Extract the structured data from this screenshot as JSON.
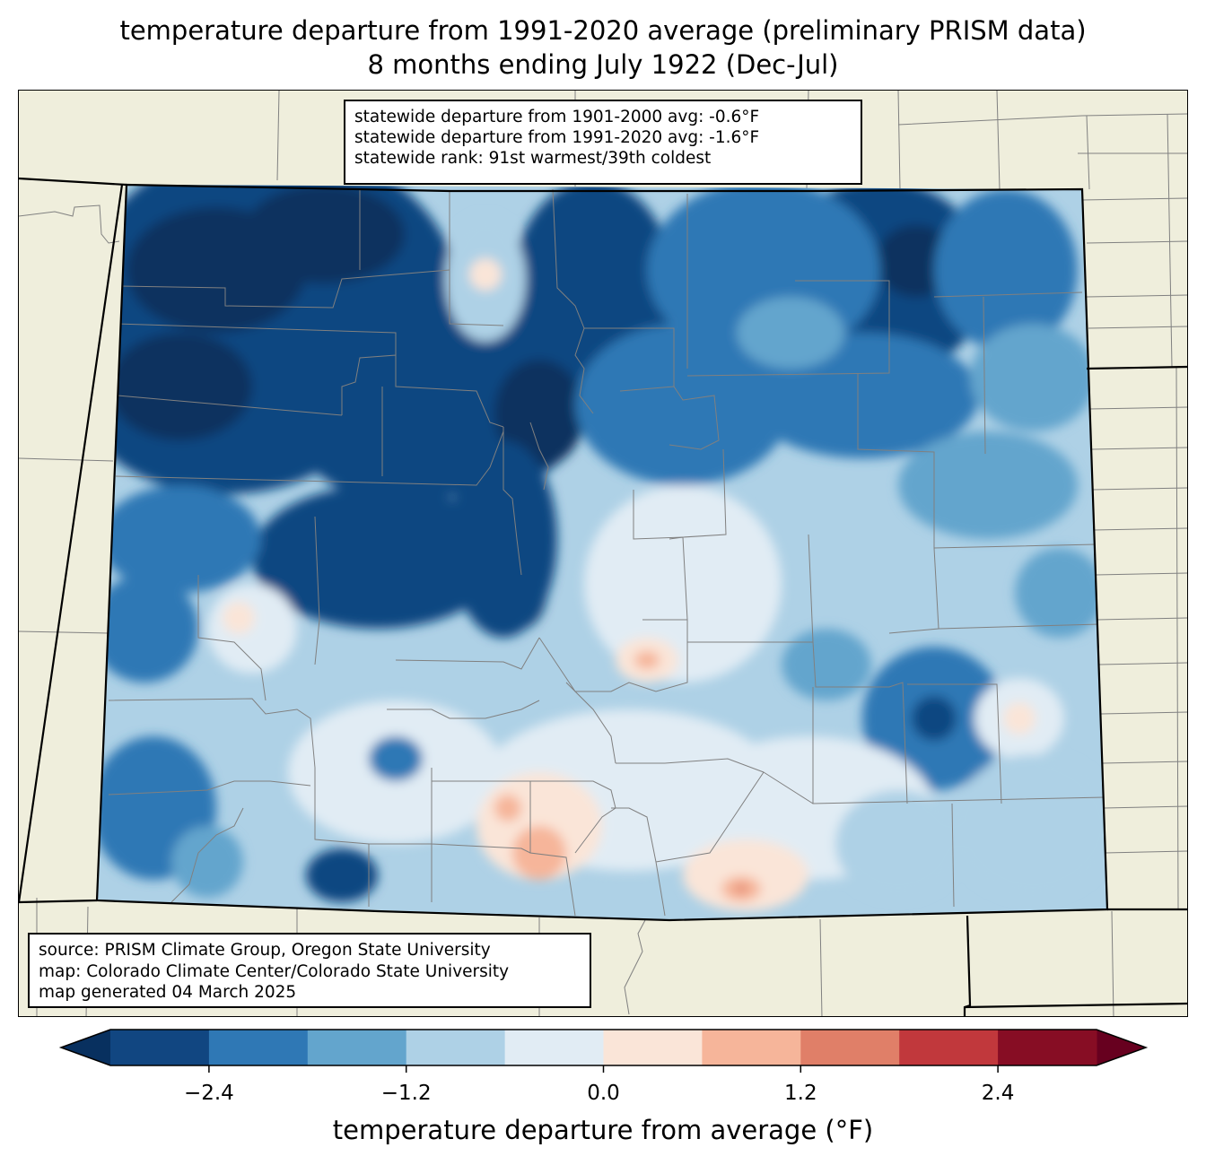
{
  "title": {
    "line1": "temperature departure from 1991-2020 average (preliminary PRISM data)",
    "line2": "8 months ending July 1922 (Dec-Jul)"
  },
  "stats": {
    "line1": "statewide departure from 1901-2000 avg: -0.6°F",
    "line2": "statewide departure from 1991-2020 avg: -1.6°F",
    "line3": "statewide rank: 91st warmest/39th coldest"
  },
  "source": {
    "line1": "source: PRISM Climate Group, Oregon State University",
    "line2": "map: Colorado Climate Center/Colorado State University",
    "line3": "map generated 04 March 2025"
  },
  "colorbar": {
    "label": "temperature departure from average (°F)",
    "ticks": [
      {
        "value": -2.4,
        "label": "−2.4"
      },
      {
        "value": -1.2,
        "label": "−1.2"
      },
      {
        "value": 0.0,
        "label": "0.0"
      },
      {
        "value": 1.2,
        "label": "1.2"
      },
      {
        "value": 2.4,
        "label": "2.4"
      }
    ],
    "range": [
      -3.0,
      3.0
    ],
    "bins": [
      {
        "from": -3.0,
        "to": -2.4,
        "color": "#114681"
      },
      {
        "from": -2.4,
        "to": -1.8,
        "color": "#2f78b5"
      },
      {
        "from": -1.8,
        "to": -1.2,
        "color": "#63a5cd"
      },
      {
        "from": -1.2,
        "to": -0.6,
        "color": "#aed1e6"
      },
      {
        "from": -0.6,
        "to": 0.0,
        "color": "#e1ecf4"
      },
      {
        "from": 0.0,
        "to": 0.6,
        "color": "#fae5d8"
      },
      {
        "from": 0.6,
        "to": 1.2,
        "color": "#f6b59a"
      },
      {
        "from": 1.2,
        "to": 1.8,
        "color": "#e07f68"
      },
      {
        "from": 1.8,
        "to": 2.4,
        "color": "#c1383c"
      },
      {
        "from": 2.4,
        "to": 3.0,
        "color": "#870d24"
      }
    ],
    "under_color": "#08305f",
    "over_color": "#67001f"
  },
  "colors": {
    "land": "#efeedc",
    "county_lines": "#808080",
    "state_lines": "#000000"
  }
}
